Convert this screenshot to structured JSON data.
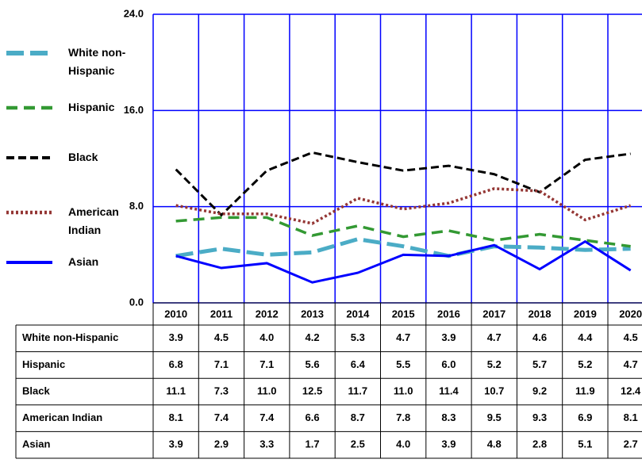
{
  "chart_data": {
    "type": "line",
    "categories": [
      "2010",
      "2011",
      "2012",
      "2013",
      "2014",
      "2015",
      "2016",
      "2017",
      "2018",
      "2019",
      "2020"
    ],
    "ylim": [
      0,
      24
    ],
    "yticks": [
      {
        "value": 0,
        "label": "0.0"
      },
      {
        "value": 8,
        "label": "8.0"
      },
      {
        "value": 16,
        "label": "16.0"
      },
      {
        "value": 24,
        "label": "24.0"
      }
    ],
    "grid": true,
    "series": [
      {
        "name": "White non-Hispanic",
        "color": "#4bacc6",
        "values": [
          3.9,
          4.5,
          4.0,
          4.2,
          5.3,
          4.7,
          3.9,
          4.7,
          4.6,
          4.4,
          4.5
        ],
        "value_labels": [
          "3.9",
          "4.5",
          "4.0",
          "4.2",
          "5.3",
          "4.7",
          "3.9",
          "4.7",
          "4.6",
          "4.4",
          "4.5"
        ]
      },
      {
        "name": "Hispanic",
        "color": "#339933",
        "values": [
          6.8,
          7.1,
          7.1,
          5.6,
          6.4,
          5.5,
          6.0,
          5.2,
          5.7,
          5.2,
          4.7
        ],
        "value_labels": [
          "6.8",
          "7.1",
          "7.1",
          "5.6",
          "6.4",
          "5.5",
          "6.0",
          "5.2",
          "5.7",
          "5.2",
          "4.7"
        ]
      },
      {
        "name": "Black",
        "color": "#000000",
        "values": [
          11.1,
          7.3,
          11.0,
          12.5,
          11.7,
          11.0,
          11.4,
          10.7,
          9.2,
          11.9,
          12.4
        ],
        "value_labels": [
          "11.1",
          "7.3",
          "11.0",
          "12.5",
          "11.7",
          "11.0",
          "11.4",
          "10.7",
          "9.2",
          "11.9",
          "12.4"
        ]
      },
      {
        "name": "American Indian",
        "color": "#943634",
        "values": [
          8.1,
          7.4,
          7.4,
          6.6,
          8.7,
          7.8,
          8.3,
          9.5,
          9.3,
          6.9,
          8.1
        ],
        "value_labels": [
          "8.1",
          "7.4",
          "7.4",
          "6.6",
          "8.7",
          "7.8",
          "8.3",
          "9.5",
          "9.3",
          "6.9",
          "8.1"
        ]
      },
      {
        "name": "Asian",
        "color": "#0000ff",
        "values": [
          3.9,
          2.9,
          3.3,
          1.7,
          2.5,
          4.0,
          3.9,
          4.8,
          2.8,
          5.1,
          2.7
        ],
        "value_labels": [
          "3.9",
          "2.9",
          "3.3",
          "1.7",
          "2.5",
          "4.0",
          "3.9",
          "4.8",
          "2.8",
          "5.1",
          "2.7"
        ]
      }
    ]
  }
}
